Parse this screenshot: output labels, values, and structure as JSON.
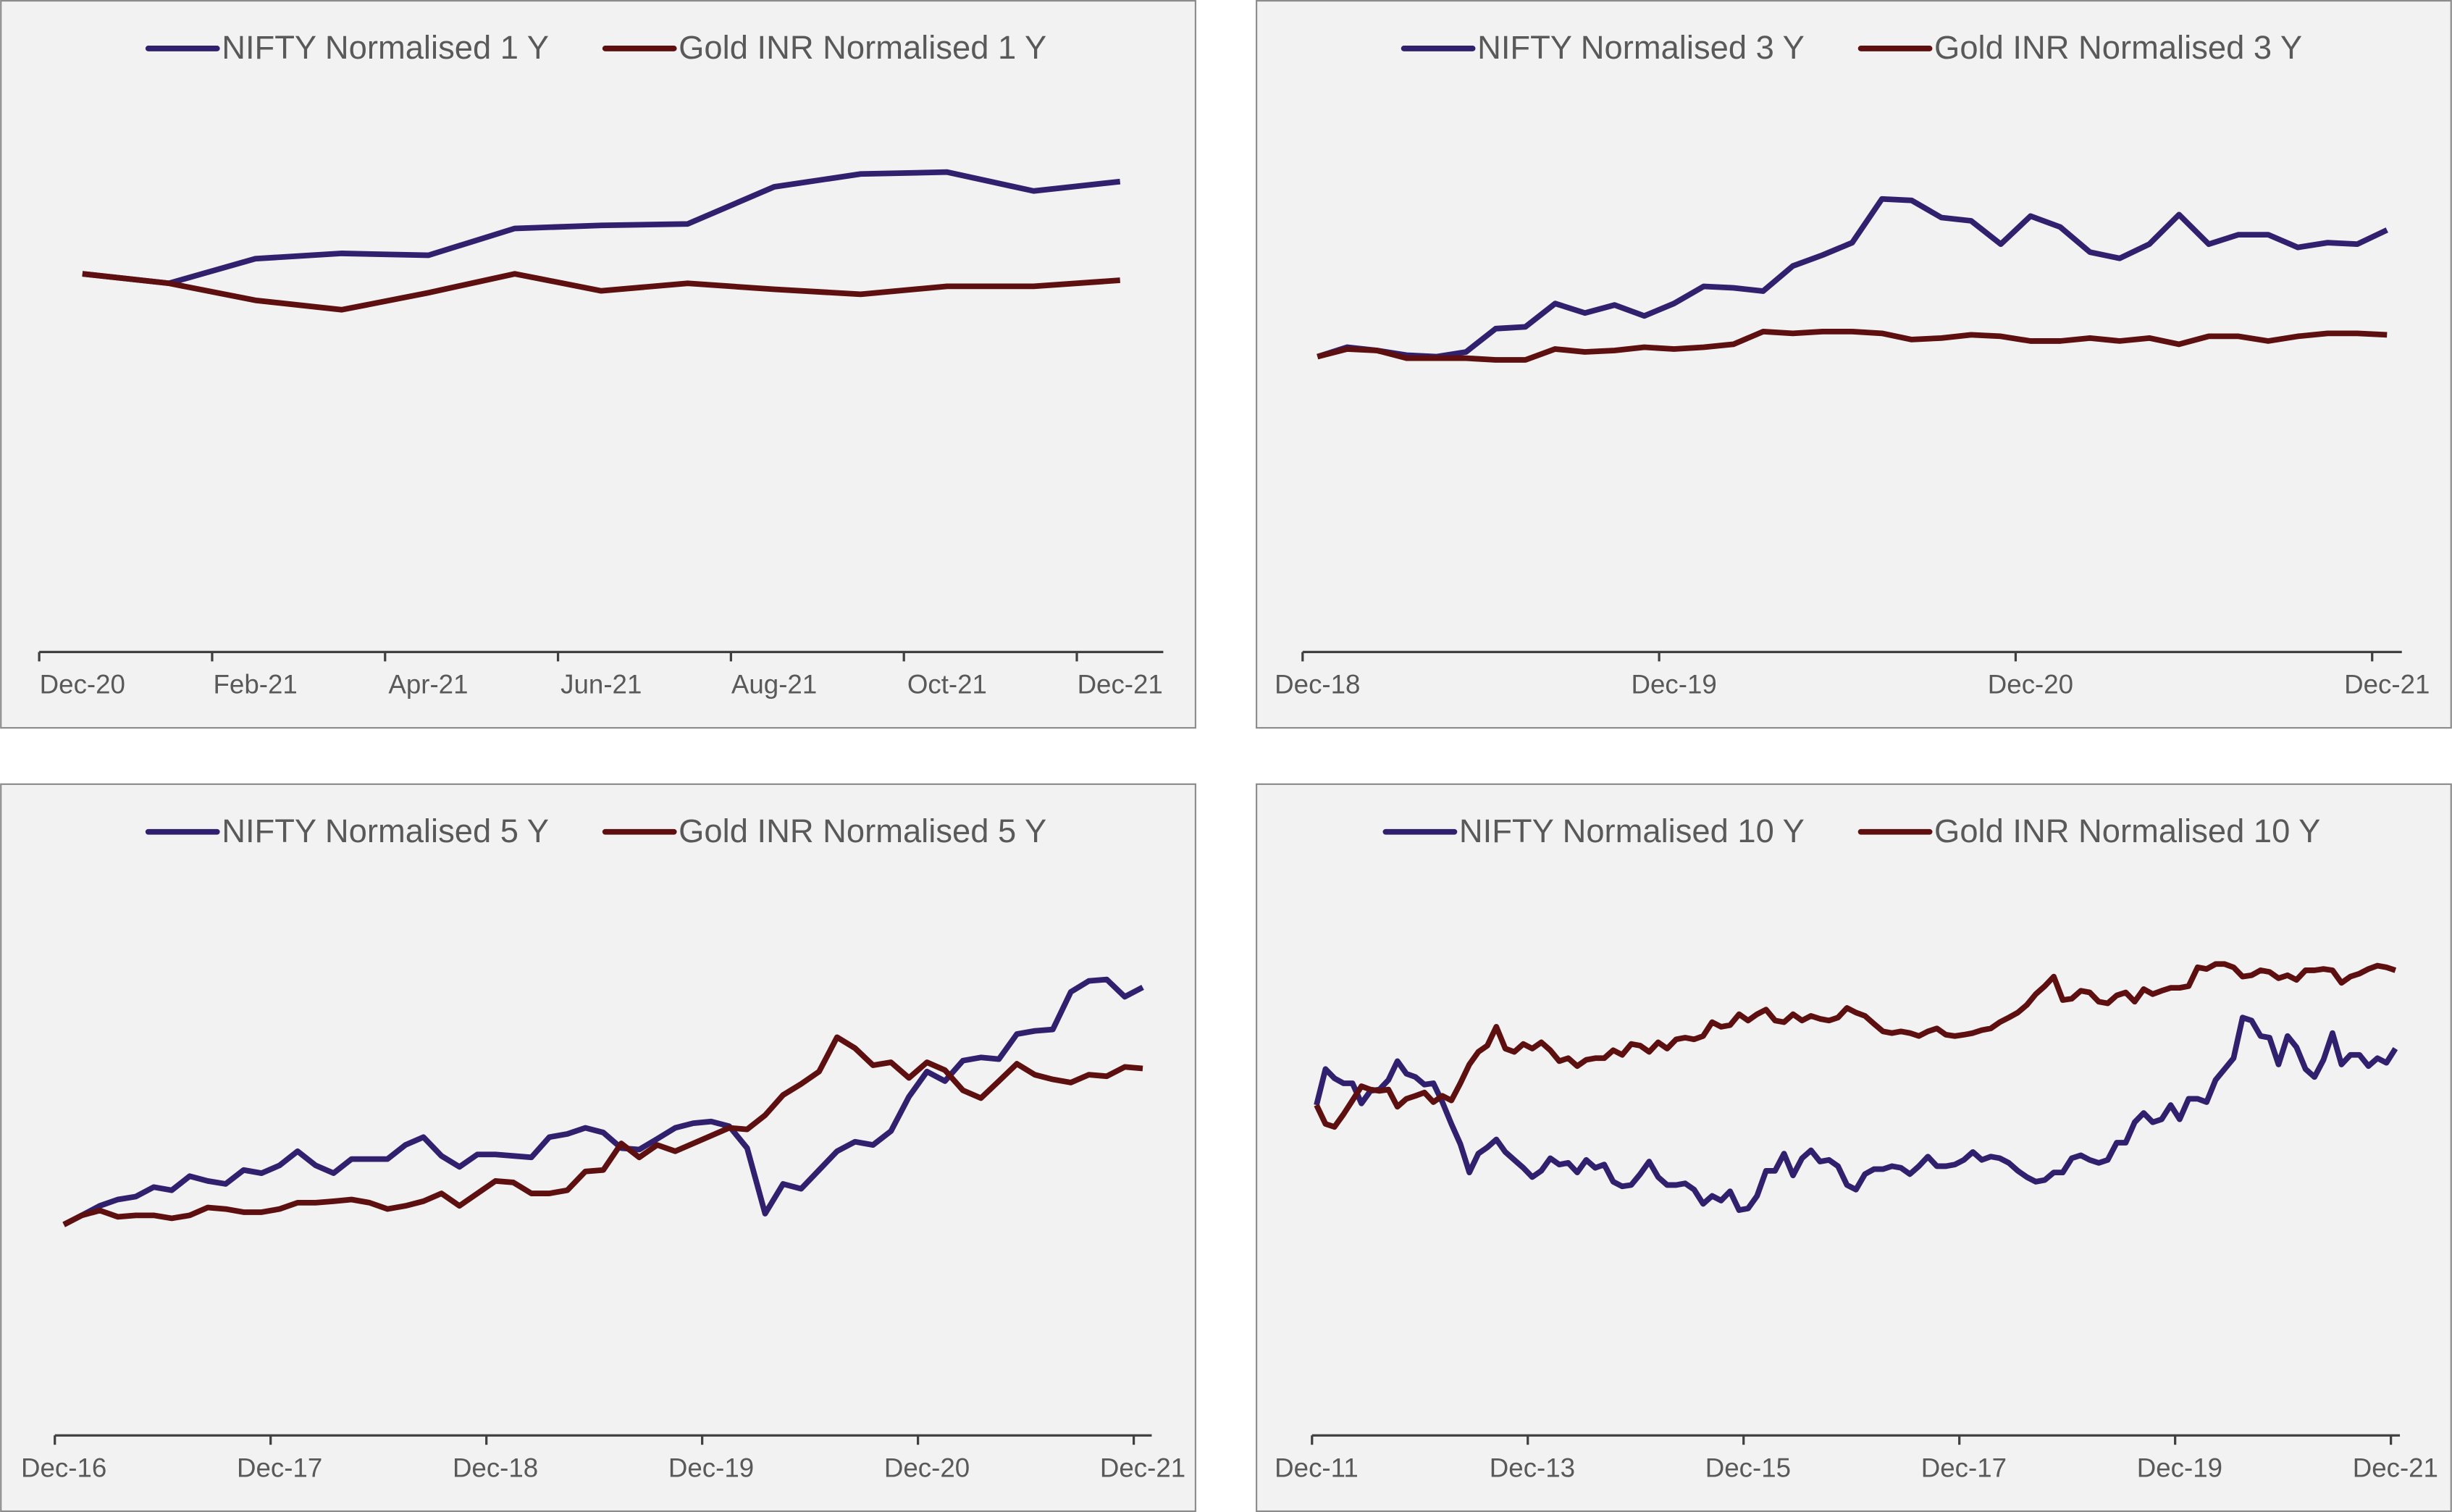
{
  "chart_data": [
    {
      "type": "line",
      "legend": "top",
      "categories": [
        "Dec-20",
        null,
        "Feb-21",
        null,
        "Apr-21",
        null,
        "Jun-21",
        null,
        "Aug-21",
        null,
        "Oct-21",
        null,
        "Dec-21"
      ],
      "ylim": [
        0,
        160
      ],
      "series": [
        {
          "name": "NIFTY Normalised 1 Y",
          "color": "#31206e",
          "values": [
            100,
            97.5,
            104,
            105.4,
            104.9,
            112,
            112.8,
            113.2,
            123,
            126.4,
            126.9,
            121.9,
            124.4
          ]
        },
        {
          "name": "Gold INR Normalised 1 Y",
          "color": "#5e1010",
          "values": [
            100,
            97.5,
            93,
            90.5,
            95,
            100,
            95.5,
            97.5,
            95.9,
            94.6,
            96.7,
            96.7,
            98.3
          ]
        }
      ]
    },
    {
      "type": "line",
      "legend": "top",
      "categories": [
        "Dec-18",
        null,
        null,
        null,
        null,
        null,
        null,
        null,
        null,
        null,
        null,
        null,
        "Dec-19",
        null,
        null,
        null,
        null,
        null,
        null,
        null,
        null,
        null,
        null,
        null,
        "Dec-20",
        null,
        null,
        null,
        null,
        null,
        null,
        null,
        null,
        null,
        null,
        null,
        "Dec-21"
      ],
      "ylim": [
        0,
        180
      ],
      "series": [
        {
          "name": "NIFTY Normalised 3 Y",
          "color": "#31206e",
          "values": [
            100,
            103.2,
            102.1,
            100.5,
            100,
            101.6,
            109.5,
            110.1,
            118,
            114.8,
            117.5,
            113.8,
            118,
            123.8,
            123.3,
            122.2,
            130.7,
            134.4,
            138.6,
            153.4,
            152.9,
            147.1,
            146,
            138.1,
            147.6,
            143.9,
            135.4,
            133.3,
            138.1,
            148.1,
            138.1,
            141.3,
            141.3,
            137,
            138.6,
            138.1,
            142.9
          ]
        },
        {
          "name": "Gold INR Normalised 3 Y",
          "color": "#5e1010",
          "values": [
            100,
            102.6,
            102.1,
            99.5,
            99.5,
            99.5,
            98.9,
            98.9,
            102.6,
            101.6,
            102.1,
            103.2,
            102.6,
            103.2,
            104.2,
            108.5,
            107.9,
            108.5,
            108.5,
            107.9,
            105.8,
            106.3,
            107.4,
            106.9,
            105.3,
            105.3,
            106.3,
            105.3,
            106.3,
            104.2,
            106.9,
            106.9,
            105.3,
            106.9,
            107.9,
            107.9,
            107.4
          ]
        }
      ]
    },
    {
      "type": "line",
      "legend": "top",
      "categories": [
        "Dec-16",
        null,
        null,
        null,
        null,
        null,
        null,
        null,
        null,
        null,
        null,
        null,
        "Dec-17",
        null,
        null,
        null,
        null,
        null,
        null,
        null,
        null,
        null,
        null,
        null,
        "Dec-18",
        null,
        null,
        null,
        null,
        null,
        null,
        null,
        null,
        null,
        null,
        null,
        "Dec-19",
        null,
        null,
        null,
        null,
        null,
        null,
        null,
        null,
        null,
        null,
        null,
        "Dec-20",
        null,
        null,
        null,
        null,
        null,
        null,
        null,
        null,
        null,
        null,
        null,
        "Dec-21"
      ],
      "ylim": [
        0,
        250
      ],
      "series": [
        {
          "name": "NIFTY Normalised 5 Y",
          "color": "#31206e",
          "values": [
            100,
            104.4,
            108.9,
            111.9,
            113.3,
            117.8,
            116.3,
            123,
            120.7,
            119.3,
            125.9,
            124.4,
            128.1,
            134.8,
            128.1,
            124.4,
            131.1,
            131.1,
            131.1,
            137.8,
            141.5,
            132.6,
            127.4,
            133.3,
            133.3,
            132.6,
            131.9,
            141.5,
            143,
            145.9,
            143.7,
            136.3,
            135.6,
            140.7,
            145.9,
            148.1,
            148.9,
            146.7,
            136.3,
            105.2,
            119.3,
            117,
            125.9,
            134.8,
            139.3,
            137.8,
            144.4,
            160.7,
            172.6,
            168.1,
            177.8,
            179.3,
            178.5,
            190.4,
            191.9,
            192.6,
            210.4,
            215.6,
            216.3,
            208.1,
            212.6
          ]
        },
        {
          "name": "Gold INR Normalised 5 Y",
          "color": "#5e1010",
          "values": [
            100,
            104.4,
            106.7,
            103.7,
            104.4,
            104.4,
            103,
            104.4,
            108.1,
            107.4,
            105.9,
            105.9,
            107.4,
            110.4,
            110.4,
            111.1,
            111.9,
            110.4,
            107.4,
            108.9,
            111.1,
            114.8,
            108.9,
            114.8,
            120.7,
            120,
            114.8,
            114.8,
            116.3,
            125.2,
            125.9,
            138.5,
            131.9,
            137.8,
            134.8,
            138.5,
            142.2,
            145.9,
            145.2,
            151.9,
            161.5,
            166.7,
            172.6,
            188.9,
            183.7,
            175.6,
            177,
            169.6,
            177,
            173.3,
            163.7,
            160,
            168.1,
            176.3,
            171.1,
            168.9,
            167.4,
            171.1,
            170.4,
            174.8,
            174.1
          ]
        }
      ]
    },
    {
      "type": "line",
      "legend": "top",
      "categories": [
        "Dec-11",
        null,
        null,
        null,
        null,
        null,
        null,
        null,
        null,
        null,
        null,
        null,
        null,
        null,
        null,
        null,
        null,
        null,
        null,
        null,
        null,
        null,
        null,
        null,
        "Dec-13",
        null,
        null,
        null,
        null,
        null,
        null,
        null,
        null,
        null,
        null,
        null,
        null,
        null,
        null,
        null,
        null,
        null,
        null,
        null,
        null,
        null,
        null,
        null,
        "Dec-15",
        null,
        null,
        null,
        null,
        null,
        null,
        null,
        null,
        null,
        null,
        null,
        null,
        null,
        null,
        null,
        null,
        null,
        null,
        null,
        null,
        null,
        null,
        null,
        "Dec-17",
        null,
        null,
        null,
        null,
        null,
        null,
        null,
        null,
        null,
        null,
        null,
        null,
        null,
        null,
        null,
        null,
        null,
        null,
        null,
        null,
        null,
        null,
        null,
        "Dec-19",
        null,
        null,
        null,
        null,
        null,
        null,
        null,
        null,
        null,
        null,
        null,
        null,
        null,
        null,
        null,
        null,
        null,
        null,
        null,
        null,
        null,
        null,
        null,
        "Dec-21"
      ],
      "ylim": [
        0,
        160
      ],
      "series": [
        {
          "name": "NIFTY Normalised 10 Y",
          "color": "#31206e",
          "values": [
            100,
            110.9,
            108.1,
            106.6,
            106.6,
            100.5,
            104.3,
            104.7,
            107.6,
            113.3,
            109.5,
            108.5,
            106.2,
            106.6,
            100.9,
            94.3,
            88.2,
            79.6,
            85.3,
            87.2,
            89.6,
            85.8,
            83.4,
            81.0,
            78.2,
            80.1,
            83.9,
            82.0,
            82.5,
            79.6,
            83.4,
            81.0,
            82.0,
            76.8,
            75.4,
            75.8,
            79.1,
            82.9,
            78.2,
            75.8,
            75.8,
            76.3,
            74.4,
            70.1,
            72.5,
            71.1,
            73.9,
            68.2,
            68.7,
            72.5,
            80.1,
            80.1,
            85.3,
            78.7,
            83.9,
            86.3,
            82.9,
            83.4,
            81.5,
            75.8,
            74.4,
            79.1,
            80.6,
            80.6,
            81.5,
            81.0,
            79.1,
            81.5,
            84.4,
            81.5,
            81.5,
            82.0,
            83.4,
            85.8,
            83.4,
            84.4,
            83.9,
            82.5,
            80.1,
            78.2,
            76.8,
            77.3,
            79.6,
            79.6,
            83.9,
            84.8,
            83.4,
            82.5,
            83.4,
            88.6,
            88.6,
            94.8,
            97.6,
            94.8,
            95.7,
            100,
            95.7,
            101.9,
            101.9,
            100.9,
            107.6,
            110.9,
            114.2,
            126.5,
            125.6,
            120.9,
            120.4,
            112.3,
            120.9,
            117.5,
            110.9,
            108.5,
            113.7,
            121.8,
            112.3,
            115.2,
            115.2,
            111.8,
            114.2,
            112.8,
            117.1
          ]
        },
        {
          "name": "Gold INR Normalised 10 Y",
          "color": "#5e1010",
          "values": [
            100,
            94.3,
            93.4,
            97.2,
            101.4,
            105.7,
            104.7,
            104.3,
            104.7,
            99.5,
            101.9,
            102.8,
            103.8,
            100.9,
            102.8,
            101.4,
            106.6,
            112.3,
            116.1,
            118,
            123.7,
            117.1,
            116.1,
            118.5,
            117.1,
            119,
            116.6,
            113.3,
            114.2,
            111.8,
            113.7,
            114.2,
            114.2,
            116.6,
            115.2,
            118.5,
            118,
            116.1,
            119,
            117.1,
            119.9,
            120.4,
            119.9,
            120.9,
            125.1,
            123.7,
            124.2,
            127.5,
            125.6,
            127.5,
            128.9,
            125.6,
            125.1,
            127.5,
            125.6,
            127,
            126.1,
            125.6,
            126.5,
            129.4,
            128,
            127,
            124.6,
            122.3,
            121.8,
            122.3,
            121.8,
            120.9,
            122.3,
            123.2,
            121.3,
            120.9,
            121.3,
            121.8,
            122.7,
            123.2,
            125.1,
            126.5,
            128,
            130.3,
            133.6,
            136,
            138.9,
            131.8,
            132.2,
            134.6,
            134.1,
            131.3,
            130.8,
            133.2,
            134.1,
            131.3,
            135.1,
            133.6,
            134.6,
            135.5,
            135.5,
            136,
            141.7,
            141.2,
            142.7,
            142.7,
            141.7,
            138.9,
            139.3,
            140.8,
            140.3,
            138.4,
            139.3,
            137.9,
            140.8,
            140.8,
            141.2,
            140.8,
            137,
            138.9,
            139.8,
            141.2,
            142.2,
            141.7,
            140.8
          ]
        }
      ]
    }
  ]
}
